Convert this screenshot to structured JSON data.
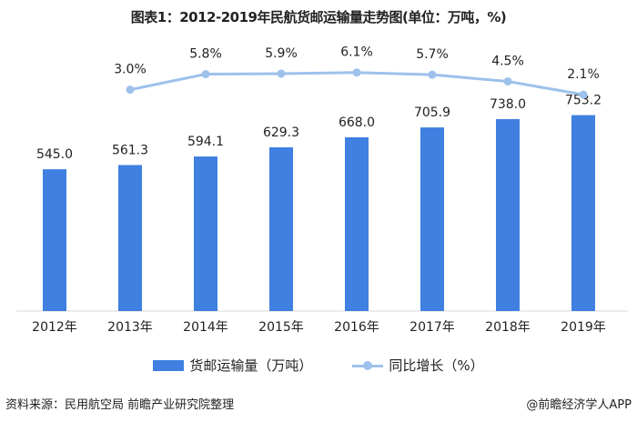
{
  "title": "图表1：2012-2019年民航货邮运输量走势图(单位：万吨，%)",
  "chart_data": {
    "type": "bar",
    "categories": [
      "2012年",
      "2013年",
      "2014年",
      "2015年",
      "2016年",
      "2017年",
      "2018年",
      "2019年"
    ],
    "series": [
      {
        "name": "货邮运输量（万吨）",
        "type": "bar",
        "values": [
          545.0,
          561.3,
          594.1,
          629.3,
          668.0,
          705.9,
          738.0,
          753.2
        ],
        "labels": [
          "545.0",
          "561.3",
          "594.1",
          "629.3",
          "668.0",
          "705.9",
          "738.0",
          "753.2"
        ],
        "color": "#3f80e0"
      },
      {
        "name": "同比增长（%）",
        "type": "line",
        "values": [
          null,
          3.0,
          5.8,
          5.9,
          6.1,
          5.7,
          4.5,
          2.1
        ],
        "labels": [
          "",
          "3.0%",
          "5.8%",
          "5.9%",
          "6.1%",
          "5.7%",
          "4.5%",
          "2.1%"
        ],
        "color": "#9ec1ec"
      }
    ],
    "ylim": [
      0,
      1000
    ],
    "y2lim": [
      -37,
      10
    ],
    "grid": false,
    "legend": "bottom"
  },
  "legend": {
    "bar": "货邮运输量（万吨）",
    "line": "同比增长（%）"
  },
  "source": "资料来源：民用航空局 前瞻产业研究院整理",
  "credit": "@前瞻经济学人APP"
}
